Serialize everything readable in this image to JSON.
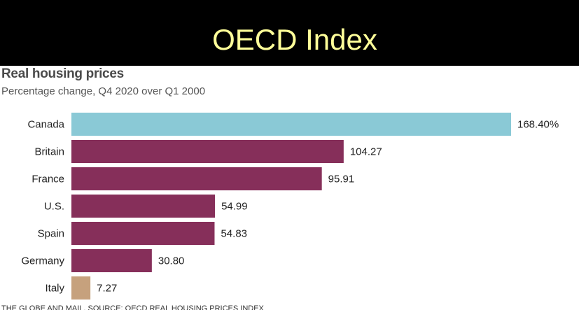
{
  "banner": {
    "title": "OECD Index"
  },
  "chart_data": {
    "type": "bar",
    "orientation": "horizontal",
    "title": "Real housing prices",
    "subtitle": "Percentage change, Q4 2020 over Q1 2000",
    "categories": [
      "Canada",
      "Britain",
      "France",
      "U.S.",
      "Spain",
      "Germany",
      "Italy"
    ],
    "values": [
      168.4,
      104.27,
      95.91,
      54.99,
      54.83,
      30.8,
      7.27
    ],
    "value_labels": [
      "168.40%",
      "104.27",
      "95.91",
      "54.99",
      "54.83",
      "30.80",
      "7.27"
    ],
    "bar_colors": [
      "#8ac9d6",
      "#862f5a",
      "#862f5a",
      "#862f5a",
      "#862f5a",
      "#862f5a",
      "#c6a17d"
    ],
    "xlim": [
      0,
      168.4
    ],
    "grid": false,
    "legend": "none"
  },
  "source": {
    "text": "THE GLOBE AND MAIL, SOURCE: OECD REAL HOUSING PRICES INDEX"
  }
}
